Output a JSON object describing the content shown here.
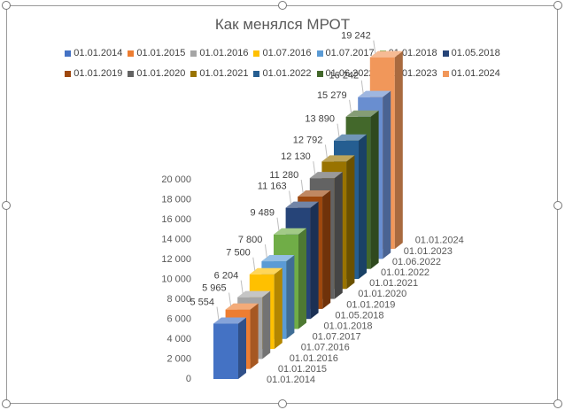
{
  "chart_data": {
    "type": "bar",
    "title": "Как менялся МРОТ",
    "xlabel": "",
    "ylabel": "",
    "ylim": [
      0,
      20000
    ],
    "y_ticks": [
      "0",
      "2 000",
      "4 000",
      "6 000",
      "8 000",
      "10 000",
      "12 000",
      "14 000",
      "16 000",
      "18 000",
      "20 000"
    ],
    "grid": false,
    "legend_position": "top",
    "series": [
      {
        "name": "01.01.2014",
        "value": 5554,
        "label": "5 554",
        "color": "#4472c4"
      },
      {
        "name": "01.01.2015",
        "value": 5965,
        "label": "5 965",
        "color": "#ed7d31"
      },
      {
        "name": "01.01.2016",
        "value": 6204,
        "label": "6 204",
        "color": "#a5a5a5"
      },
      {
        "name": "01.07.2016",
        "value": 7500,
        "label": "7 500",
        "color": "#ffc000"
      },
      {
        "name": "01.07.2017",
        "value": 7800,
        "label": "7 800",
        "color": "#5b9bd5"
      },
      {
        "name": "01.01.2018",
        "value": 9489,
        "label": "9 489",
        "color": "#70ad47"
      },
      {
        "name": "01.05.2018",
        "value": 11163,
        "label": "11 163",
        "color": "#264478"
      },
      {
        "name": "01.01.2019",
        "value": 11280,
        "label": "11 280",
        "color": "#9e480e"
      },
      {
        "name": "01.01.2020",
        "value": 12130,
        "label": "12 130",
        "color": "#636363"
      },
      {
        "name": "01.01.2021",
        "value": 12792,
        "label": "12 792",
        "color": "#997300"
      },
      {
        "name": "01.01.2022",
        "value": 13890,
        "label": "13 890",
        "color": "#255e91"
      },
      {
        "name": "01.06.2022",
        "value": 15279,
        "label": "15 279",
        "color": "#43682b"
      },
      {
        "name": "01.01.2023",
        "value": 16242,
        "label": "16 242",
        "color": "#698ed0"
      },
      {
        "name": "01.01.2024",
        "value": 19242,
        "label": "19 242",
        "color": "#f1975a"
      }
    ]
  }
}
